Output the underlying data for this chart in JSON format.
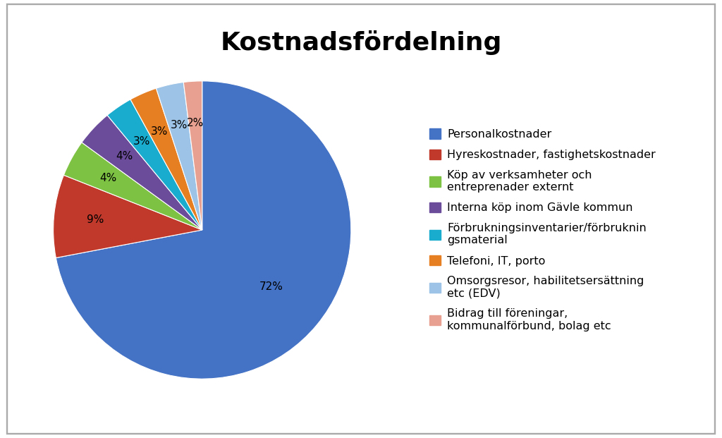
{
  "title": "Kostnadsfördelning",
  "slices": [
    72,
    9,
    4,
    4,
    3,
    3,
    3,
    2
  ],
  "labels": [
    "Personalkostnader",
    "Hyreskostnader, fastighetskostnader",
    "Köp av verksamheter och\nentreprenader externt",
    "Interna köp inom Gävle kommun",
    "Förbrukningsinventarier/förbruknin\ngsmaterial",
    "Telefoni, IT, porto",
    "Omsorgsresor, habilitetsersättning\netc (EDV)",
    "Bidrag till föreningar,\nkommunalförbund, bolag etc"
  ],
  "colors": [
    "#4472C4",
    "#C0392B",
    "#7DC242",
    "#6B4C9A",
    "#1AACCF",
    "#E67E22",
    "#9DC3E6",
    "#E8A090"
  ],
  "pct_labels": [
    "72%",
    "9%",
    "4%",
    "4%",
    "3%",
    "3%",
    "3%",
    "2%"
  ],
  "title_fontsize": 26,
  "legend_fontsize": 11.5,
  "background_color": "#FFFFFF",
  "border_color": "#AAAAAA"
}
